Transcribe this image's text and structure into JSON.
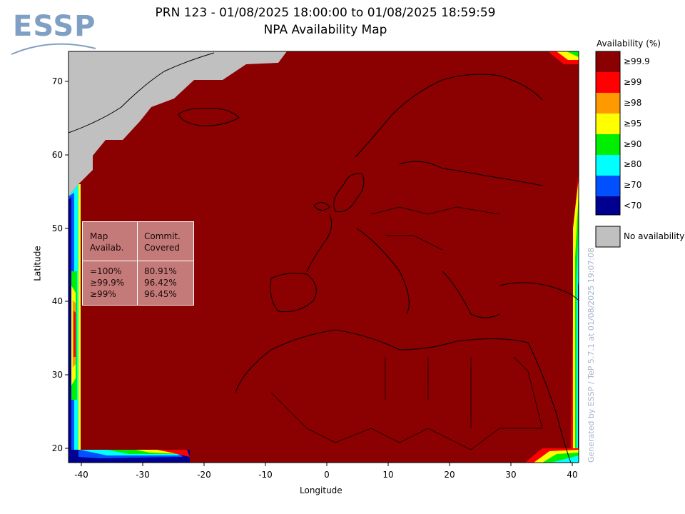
{
  "logo": {
    "text": "ESSP"
  },
  "title": {
    "line1": "PRN 123 - 01/08/2025 18:00:00 to 01/08/2025 18:59:59",
    "line2": "NPA Availability Map"
  },
  "axes": {
    "xlabel": "Longitude",
    "ylabel": "Latitude",
    "x_ticks": [
      "-40",
      "-30",
      "-20",
      "-10",
      "0",
      "10",
      "20",
      "30",
      "40"
    ],
    "y_ticks": [
      "70",
      "60",
      "50",
      "40",
      "30",
      "20"
    ]
  },
  "legend": {
    "title": "Availability (%)",
    "items": [
      {
        "label": "≥99.9",
        "color": "#8b0000"
      },
      {
        "label": "≥99",
        "color": "#ff0000"
      },
      {
        "label": "≥98",
        "color": "#ff9900"
      },
      {
        "label": "≥95",
        "color": "#ffff00"
      },
      {
        "label": "≥90",
        "color": "#00ee00"
      },
      {
        "label": "≥80",
        "color": "#00ffff"
      },
      {
        "label": "≥70",
        "color": "#0050ff"
      },
      {
        "label": "<70",
        "color": "#000090"
      }
    ],
    "no_availability": {
      "label": "No availability",
      "color": "#c0c0c0"
    }
  },
  "stats": {
    "col1_header": "Map\nAvailab.",
    "col2_header": "Commit.\nCovered",
    "col1_values": "=100%\n≥99.9%\n≥99%",
    "col2_values": "80.91%\n96.42%\n96.45%"
  },
  "watermark": "Generated by ESSP / TeP 5.7.1 at 01/08/2025 19:07:08"
}
